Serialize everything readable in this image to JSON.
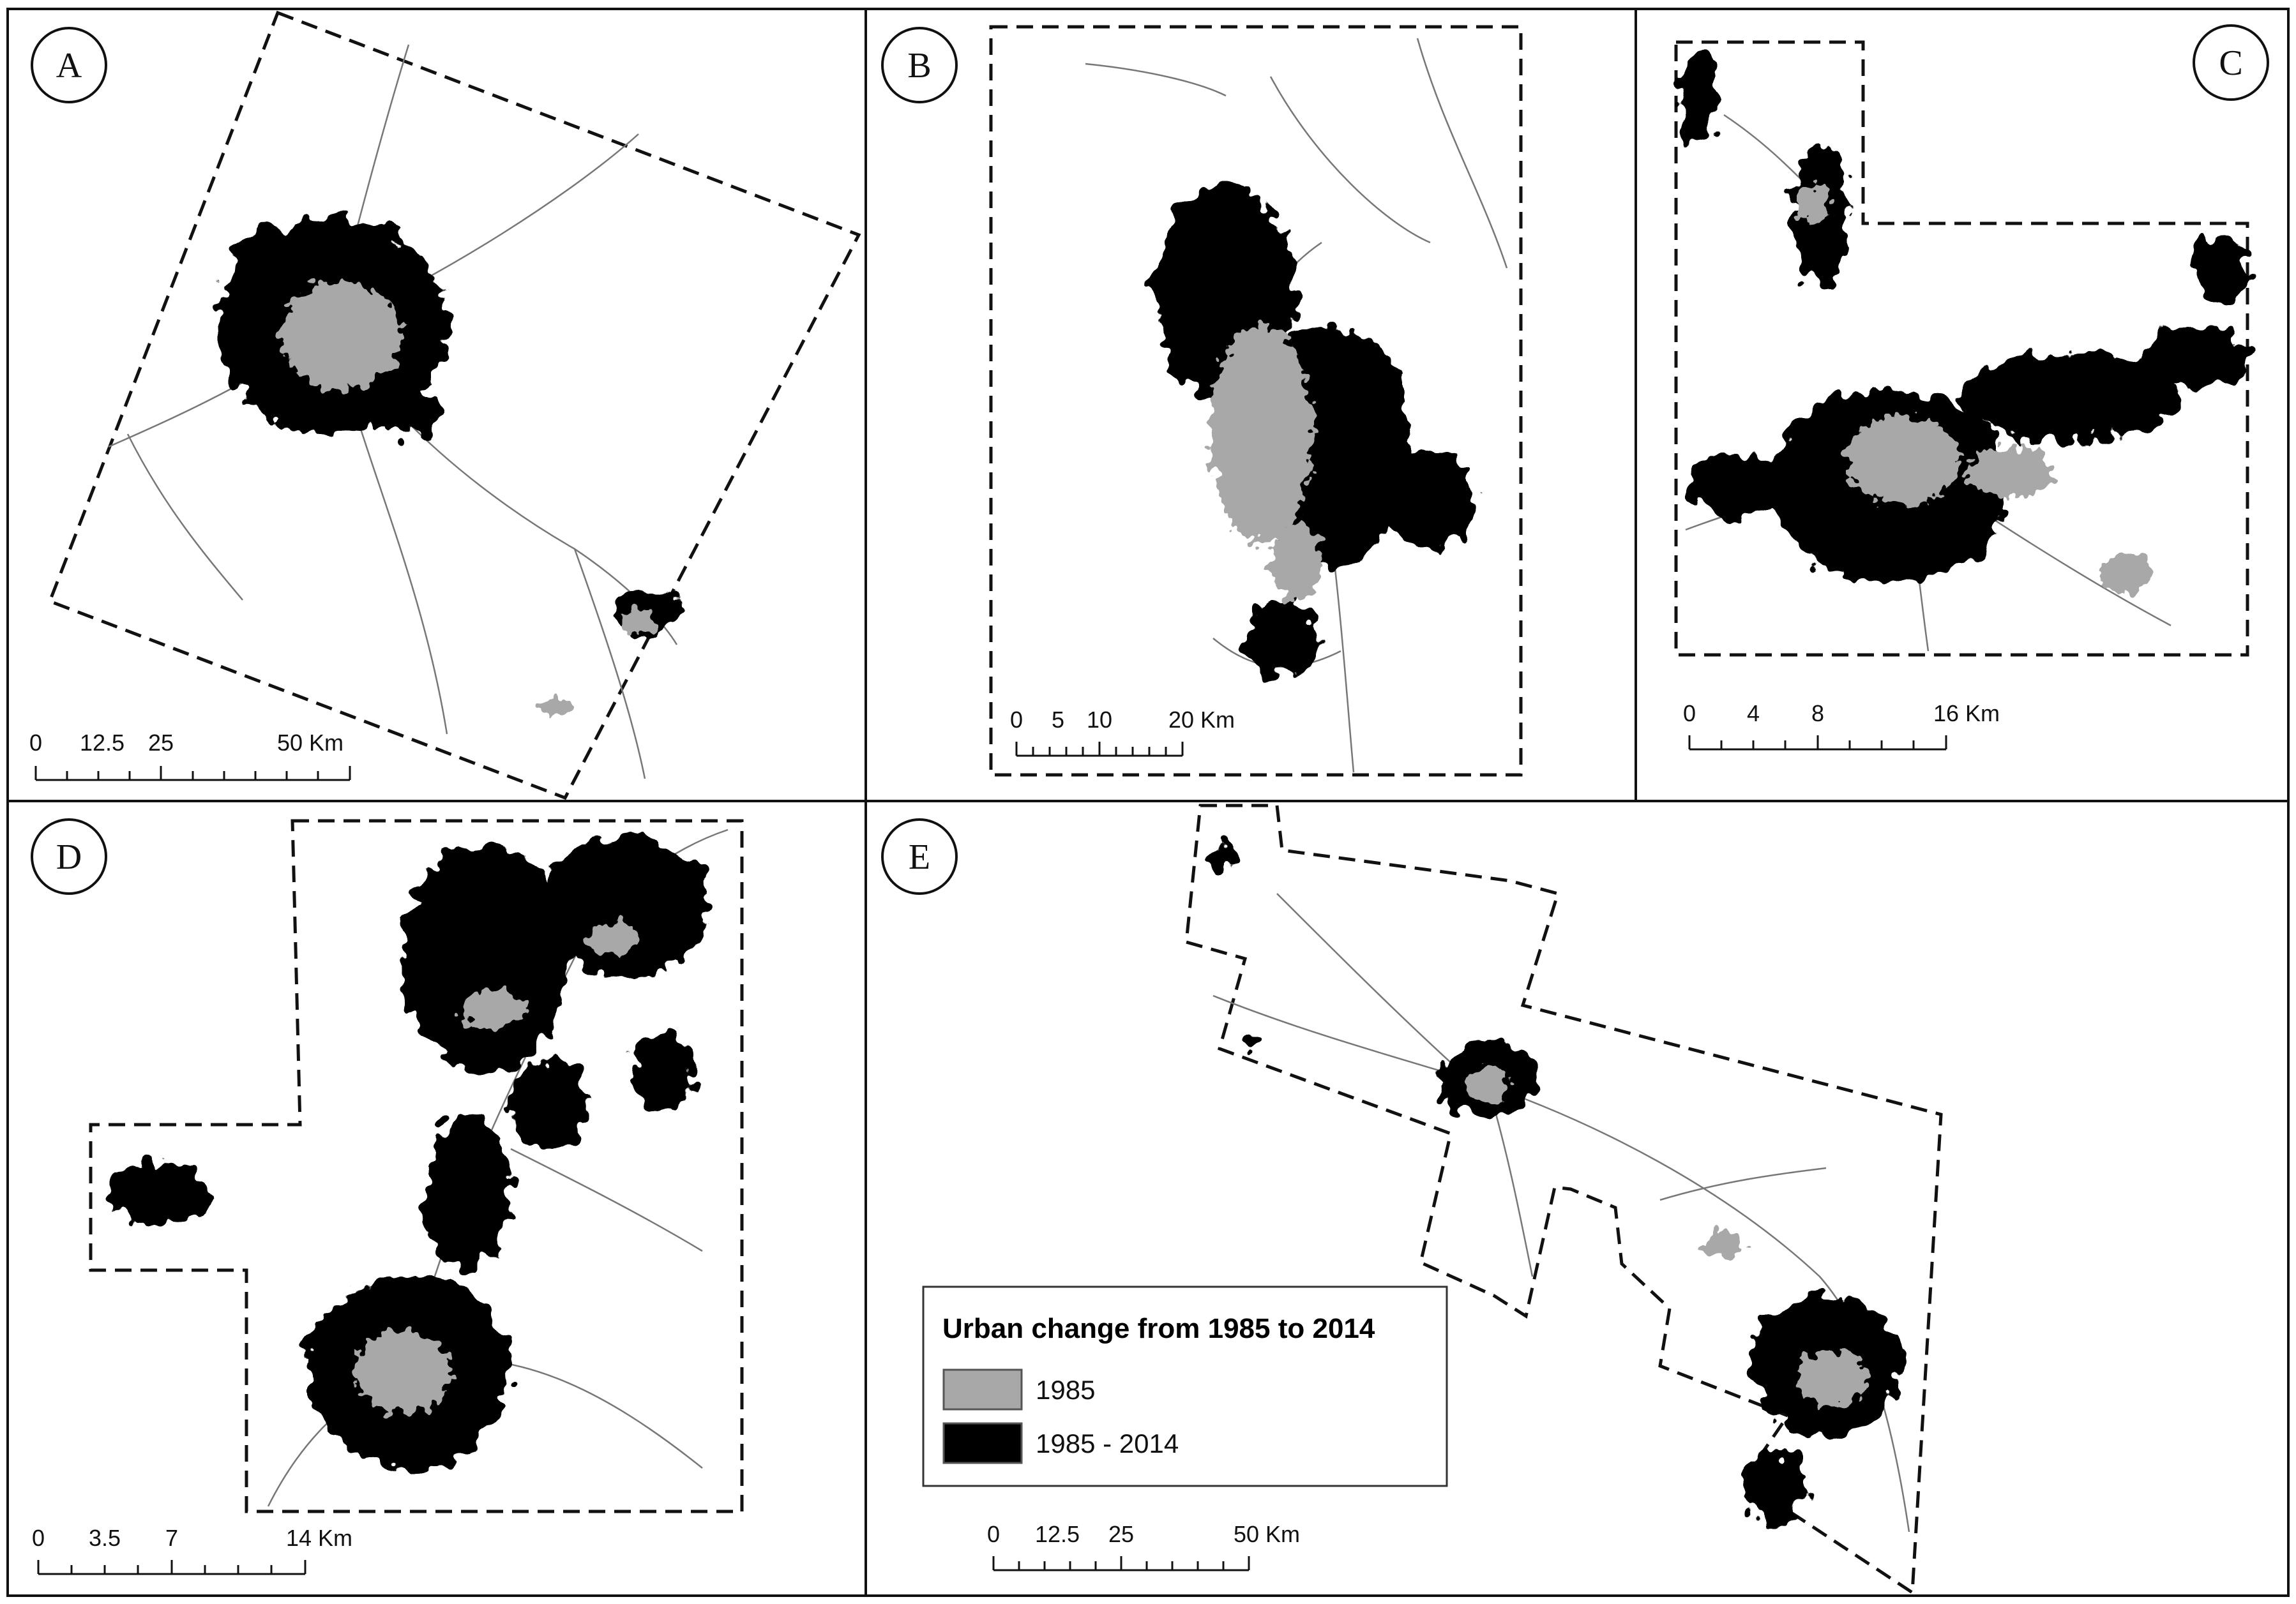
{
  "colors": {
    "urban_1985": "#a8a8a8",
    "urban_1985_2014": "#000000",
    "boundary": "#111111",
    "background": "#ffffff"
  },
  "panels": [
    {
      "id": "A",
      "label": "A",
      "scale": {
        "ticks": [
          "0",
          "12.5",
          "25",
          "50 Km"
        ]
      }
    },
    {
      "id": "B",
      "label": "B",
      "scale": {
        "ticks": [
          "0",
          "5",
          "10",
          "20 Km"
        ]
      }
    },
    {
      "id": "C",
      "label": "C",
      "scale": {
        "ticks": [
          "0",
          "4",
          "8",
          "16 Km"
        ]
      }
    },
    {
      "id": "D",
      "label": "D",
      "scale": {
        "ticks": [
          "0",
          "3.5",
          "7",
          "14 Km"
        ]
      }
    },
    {
      "id": "E",
      "label": "E",
      "scale": {
        "ticks": [
          "0",
          "12.5",
          "25",
          "50 Km"
        ]
      }
    }
  ],
  "legend": {
    "title": "Urban change from 1985 to 2014",
    "items": [
      {
        "label": "1985",
        "color": "#a8a8a8"
      },
      {
        "label": "1985 - 2014",
        "color": "#000000"
      }
    ]
  }
}
